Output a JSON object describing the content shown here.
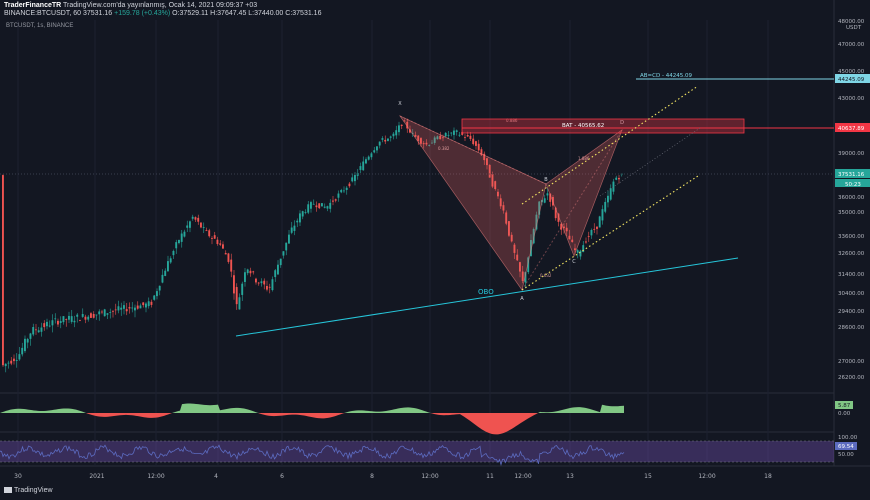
{
  "header": {
    "author": "TraderFinanceTR",
    "published": "TradingView.com'da yayınlanmış, Ocak 14, 2021 09:09:37 +03",
    "symbol_line": "BINANCE:BTCUSDT, 60",
    "price": "37531.16",
    "change": "+159.78 (+0.43%)",
    "ohlc": "O:37529.11 H:37647.45 L:37440.00 C:37531.16"
  },
  "symbol_label": "BTCUSDT, 1s, BINANCE",
  "price_axis": {
    "currency": "USDT",
    "ticks": [
      "48000.00",
      "47000.00",
      "45000.00",
      "44245.09",
      "43000.00",
      "40637.89",
      "39000.00",
      "37531.16",
      "36000.00",
      "35000.00",
      "33600.00",
      "32600.00",
      "31400.00",
      "30400.00",
      "29400.00",
      "28600.00",
      "27000.00",
      "26200.00"
    ],
    "countdown": "50:23"
  },
  "time_axis": {
    "ticks": [
      "30",
      "2021",
      "12:00",
      "4",
      "6",
      "8",
      "12:00",
      "11",
      "12:00",
      "13",
      "15",
      "12:00",
      "18"
    ]
  },
  "annotations": {
    "abcd": "AB=CD - 44245.09",
    "bat": "BAT - 40565.62",
    "obo": "OBO",
    "x": "X",
    "a": "A",
    "b": "B",
    "c": "C",
    "d": "D",
    "r1": "0.886",
    "r2": "0.382",
    "r3": "0.632",
    "r4": "1.886"
  },
  "osc1": {
    "value": "5.87",
    "zero": "0.00"
  },
  "osc2": {
    "upper": "100.00",
    "value": "69.54",
    "lower": "50.00"
  },
  "footer": {
    "brand": "TradingView"
  },
  "colors": {
    "bg": "#131722",
    "up": "#26a69a",
    "down": "#ef5350",
    "trend": "#26c6da",
    "bat": "#f23645",
    "abcd": "#7fd6e6",
    "yellow": "#f5e663"
  }
}
